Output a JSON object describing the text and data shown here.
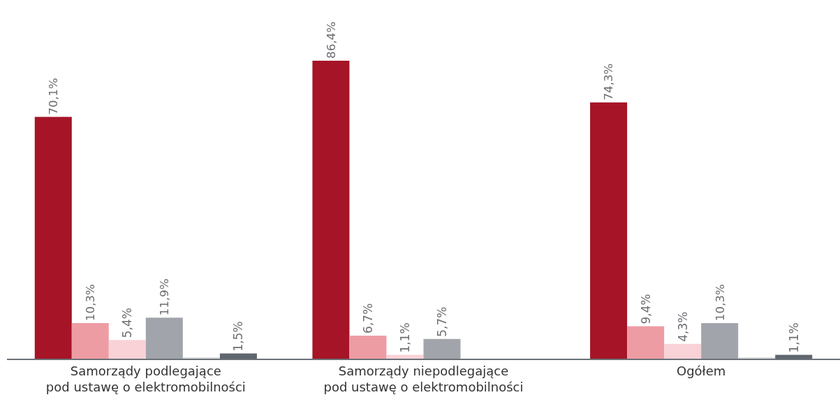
{
  "chart_data": {
    "type": "bar",
    "categories": [
      "Samorządy podlegające\npod ustawę o elektromobilności",
      "Samorządy niepodlegające\npod ustawę o elektromobilności",
      "Ogółem"
    ],
    "series": [
      {
        "color": "#a51427",
        "values": [
          70.1,
          86.4,
          74.3
        ],
        "value_labels": [
          "70,1%",
          "86,4%",
          "74,3%"
        ]
      },
      {
        "color": "#ee9ca4",
        "values": [
          10.3,
          6.7,
          9.4
        ],
        "value_labels": [
          "10,3%",
          "6,7%",
          "9,4%"
        ]
      },
      {
        "color": "#f9d2d7",
        "values": [
          5.4,
          1.1,
          4.3
        ],
        "value_labels": [
          "5,4%",
          "1,1%",
          "4,3%"
        ]
      },
      {
        "color": "#a1a5ab",
        "values": [
          11.9,
          5.7,
          10.3
        ],
        "value_labels": [
          "11,9%",
          "5,7%",
          "10,3%"
        ]
      },
      {
        "color": "#d9dadc",
        "values": [
          0.4,
          null,
          0.4
        ],
        "value_labels": [
          null,
          null,
          null
        ]
      },
      {
        "color": "#5f666d",
        "values": [
          1.5,
          null,
          1.1
        ],
        "value_labels": [
          "1,5%",
          null,
          "1,1%"
        ]
      }
    ],
    "ylim": [
      0,
      104
    ],
    "tick_labels": "x",
    "legend": false
  }
}
